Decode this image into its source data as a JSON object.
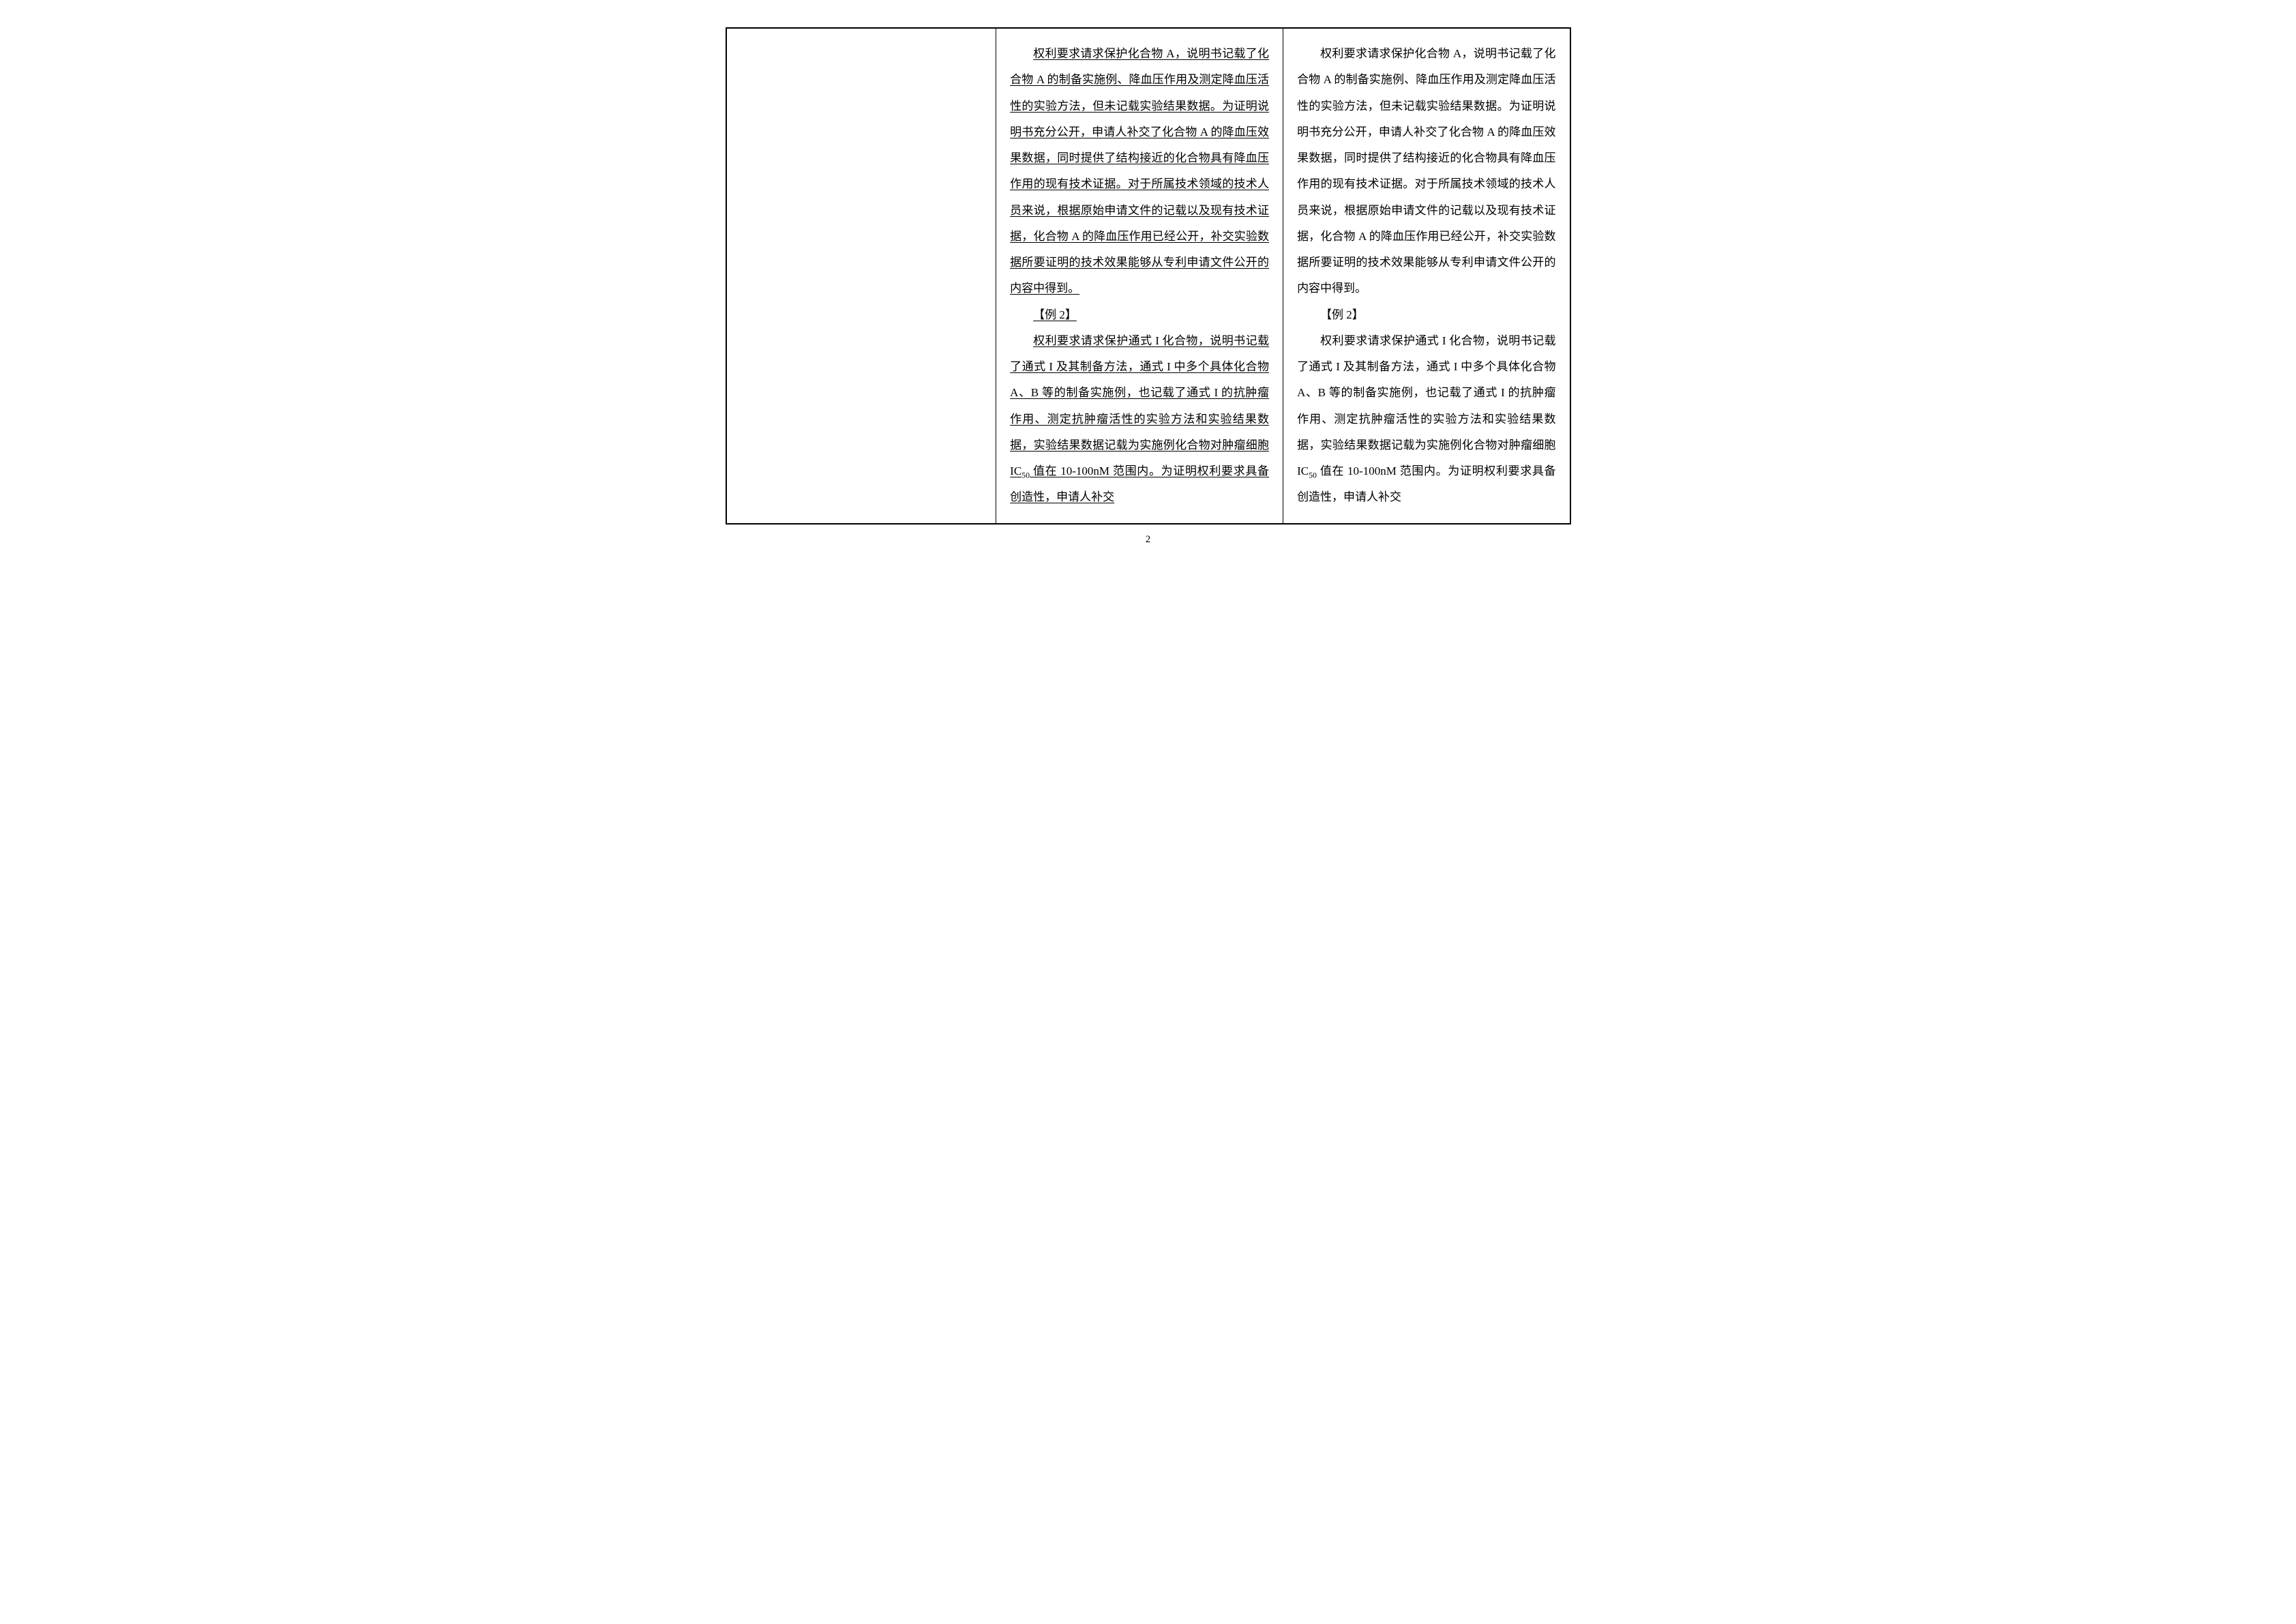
{
  "pageNumber": "2",
  "columns": {
    "left": {
      "content": ""
    },
    "middle": {
      "underlined": true,
      "paragraphs": [
        {
          "type": "body",
          "pre": "权利要求请求保护化合物 A，说明书记载了化合物 A 的制备实施例、降血压作用及测定降血压活性的实验方法，但未记载实验结果数据。为证明说明书充分公开，申请人补交了化合物 A 的降血压效果数据，同时提供了结构接近的化合物具有降血压作用的现有技术证据。对于所属技术领域的技术人员来说，根据原始申请文件的记载以及现有技术证据，化合物 A 的降血压作用已经公开，补交实验数据所要证明的技术效果能够从专利申请文件公开的内容中得到。"
        },
        {
          "type": "heading",
          "pre": "【例 2】"
        },
        {
          "type": "body",
          "pre": "权利要求请求保护通式 I 化合物，说明书记载了通式 I 及其制备方法，通式 I 中多个具体化合物 A、B 等的制备实施例，也记载了通式 I 的抗肿瘤作用、测定抗肿瘤活性的实验方法和实验结果数据，实验结果数据记载为实施例化合物对肿瘤细胞 IC",
          "sub": "50",
          "post": " 值在 10-100nM 范围内。为证明权利要求具备创造性，申请人补交"
        }
      ]
    },
    "right": {
      "underlined": false,
      "paragraphs": [
        {
          "type": "body",
          "pre": "权利要求请求保护化合物 A，说明书记载了化合物 A 的制备实施例、降血压作用及测定降血压活性的实验方法，但未记载实验结果数据。为证明说明书充分公开，申请人补交了化合物 A 的降血压效果数据，同时提供了结构接近的化合物具有降血压作用的现有技术证据。对于所属技术领域的技术人员来说，根据原始申请文件的记载以及现有技术证据，化合物 A 的降血压作用已经公开，补交实验数据所要证明的技术效果能够从专利申请文件公开的内容中得到。"
        },
        {
          "type": "heading",
          "pre": "【例 2】"
        },
        {
          "type": "body",
          "pre": "权利要求请求保护通式 I 化合物，说明书记载了通式 I 及其制备方法，通式 I 中多个具体化合物 A、B 等的制备实施例，也记载了通式 I 的抗肿瘤作用、测定抗肿瘤活性的实验方法和实验结果数据，实验结果数据记载为实施例化合物对肿瘤细胞 IC",
          "sub": "50",
          "post": " 值在 10-100nM 范围内。为证明权利要求具备创造性，申请人补交"
        }
      ]
    }
  },
  "style": {
    "fontSizePt": 17,
    "lineHeight": 2.25,
    "textColor": "#000000",
    "borderColor": "#000000",
    "backgroundColor": "#ffffff"
  }
}
